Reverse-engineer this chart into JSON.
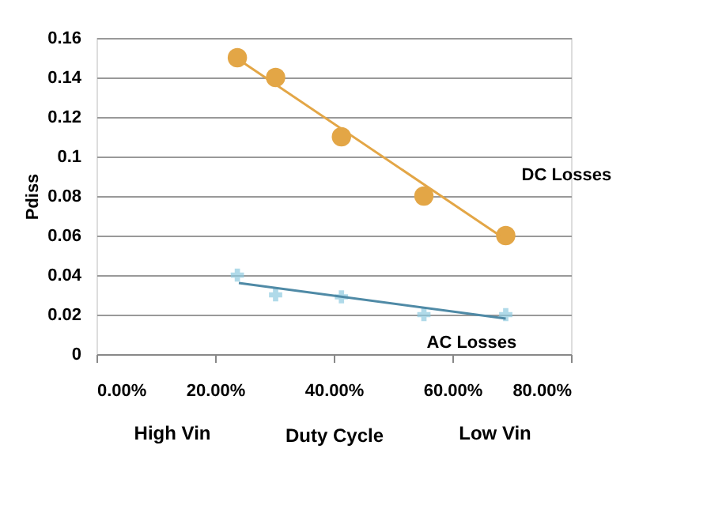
{
  "chart_data": {
    "type": "scatter",
    "xlabel": "Duty Cycle",
    "ylabel": "Pdiss",
    "x": [
      0.2375,
      0.302,
      0.413,
      0.552,
      0.69
    ],
    "series": [
      {
        "name": "DC Losses",
        "marker": "circle",
        "color": "#e3a646",
        "values": [
          0.15,
          0.14,
          0.11,
          0.08,
          0.06
        ]
      },
      {
        "type": "line",
        "color": "#e3a646",
        "x": [
          0.24,
          0.68
        ],
        "values": [
          0.149,
          0.06
        ]
      },
      {
        "name": "AC Losses",
        "marker": "cross",
        "color": "#8ecae0",
        "values": [
          0.04,
          0.03,
          0.029,
          0.02,
          0.02
        ]
      },
      {
        "type": "line",
        "color": "#4f8aa6",
        "x": [
          0.24,
          0.69
        ],
        "values": [
          0.036,
          0.018
        ]
      }
    ],
    "xlim": [
      0,
      0.8
    ],
    "xticks": [
      {
        "value": 0,
        "label": "0.00%"
      },
      {
        "value": 0.2,
        "label": "20.00%"
      },
      {
        "value": 0.4,
        "label": "40.00%"
      },
      {
        "value": 0.6,
        "label": "60.00%"
      },
      {
        "value": 0.8,
        "label": "80.00%"
      }
    ],
    "ylim": [
      0,
      0.16
    ],
    "yticks": [
      0,
      0.02,
      0.04,
      0.06,
      0.08,
      0.1,
      0.12,
      0.14,
      0.16
    ],
    "annotations": [
      "High Vin",
      "Low Vin"
    ],
    "grid": "y"
  }
}
